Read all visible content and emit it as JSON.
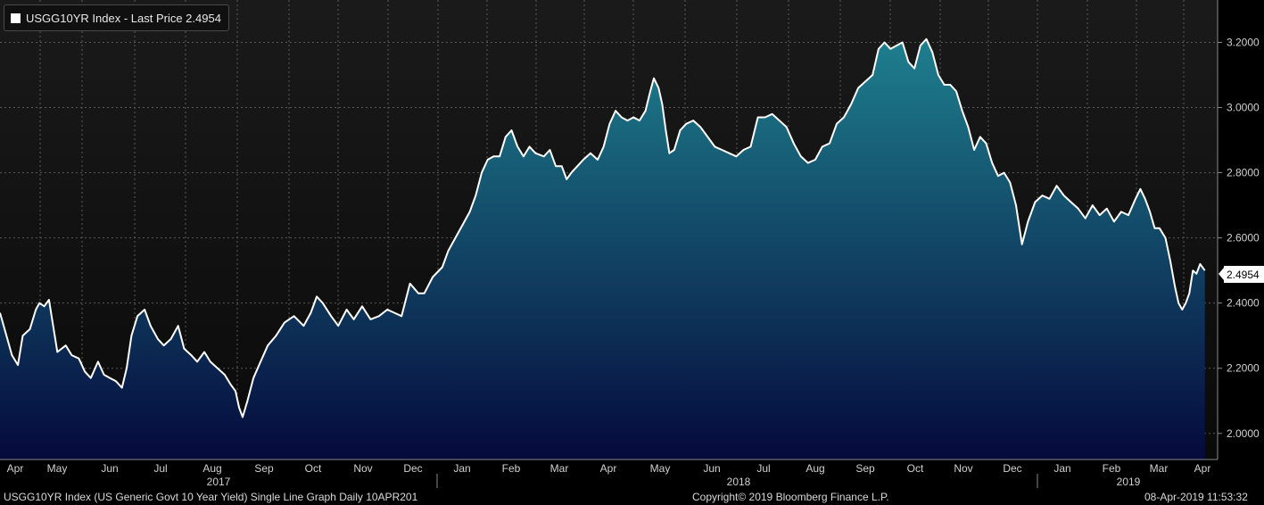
{
  "legend": {
    "label": "USGG10YR Index - Last Price 2.4954",
    "color": "#ffffff"
  },
  "footer": {
    "left": "USGG10YR Index (US Generic Govt 10 Year Yield) Single Line Graph  Daily 10APR201",
    "center": "Copyright© 2019 Bloomberg Finance L.P.",
    "right": "08-Apr-2019 11:53:32"
  },
  "colors": {
    "background_top": "#1a1a1a",
    "background_bottom": "#0a0a0a",
    "fill_top": "#1e7f8e",
    "fill_bottom": "#050a3c",
    "line": "#ffffff",
    "grid": "#5a5a5a"
  },
  "chart_data": {
    "type": "area",
    "title": "USGG10YR Index - Last Price 2.4954",
    "xlabel": "",
    "ylabel": "",
    "last_price_label": "2.4954",
    "ylim": [
      1.92,
      3.33
    ],
    "y_ticks": [
      "2.0000",
      "2.2000",
      "2.4000",
      "2.6000",
      "2.8000",
      "3.0000",
      "3.2000"
    ],
    "y_tick_values": [
      2.0,
      2.2,
      2.4,
      2.6,
      2.8,
      3.0,
      3.2
    ],
    "grid": true,
    "month_labels": [
      "Apr",
      "May",
      "Jun",
      "Jul",
      "Aug",
      "Sep",
      "Oct",
      "Nov",
      "Dec",
      "Jan",
      "Feb",
      "Mar",
      "Apr",
      "May",
      "Jun",
      "Jul",
      "Aug",
      "Sep",
      "Oct",
      "Nov",
      "Dec",
      "Jan",
      "Feb",
      "Mar",
      "Apr"
    ],
    "year_labels": [
      "2017",
      "2018",
      "2019"
    ],
    "series": [
      {
        "values": [
          [
            0.0,
            2.37
          ],
          [
            0.01,
            2.24
          ],
          [
            0.015,
            2.21
          ],
          [
            0.019,
            2.3
          ],
          [
            0.025,
            2.32
          ],
          [
            0.03,
            2.38
          ],
          [
            0.033,
            2.4
          ],
          [
            0.037,
            2.39
          ],
          [
            0.041,
            2.41
          ],
          [
            0.044,
            2.34
          ],
          [
            0.048,
            2.25
          ],
          [
            0.055,
            2.27
          ],
          [
            0.06,
            2.24
          ],
          [
            0.066,
            2.23
          ],
          [
            0.071,
            2.19
          ],
          [
            0.076,
            2.17
          ],
          [
            0.082,
            2.22
          ],
          [
            0.087,
            2.18
          ],
          [
            0.092,
            2.17
          ],
          [
            0.097,
            2.16
          ],
          [
            0.102,
            2.14
          ],
          [
            0.106,
            2.2
          ],
          [
            0.11,
            2.3
          ],
          [
            0.115,
            2.36
          ],
          [
            0.121,
            2.38
          ],
          [
            0.126,
            2.33
          ],
          [
            0.132,
            2.29
          ],
          [
            0.137,
            2.27
          ],
          [
            0.143,
            2.29
          ],
          [
            0.149,
            2.33
          ],
          [
            0.154,
            2.26
          ],
          [
            0.16,
            2.24
          ],
          [
            0.165,
            2.22
          ],
          [
            0.171,
            2.25
          ],
          [
            0.176,
            2.22
          ],
          [
            0.182,
            2.2
          ],
          [
            0.188,
            2.18
          ],
          [
            0.193,
            2.15
          ],
          [
            0.197,
            2.13
          ],
          [
            0.2,
            2.08
          ],
          [
            0.203,
            2.05
          ],
          [
            0.207,
            2.1
          ],
          [
            0.212,
            2.17
          ],
          [
            0.218,
            2.22
          ],
          [
            0.224,
            2.27
          ],
          [
            0.231,
            2.3
          ],
          [
            0.238,
            2.34
          ],
          [
            0.246,
            2.36
          ],
          [
            0.254,
            2.33
          ],
          [
            0.26,
            2.37
          ],
          [
            0.265,
            2.42
          ],
          [
            0.27,
            2.4
          ],
          [
            0.277,
            2.36
          ],
          [
            0.283,
            2.33
          ],
          [
            0.29,
            2.38
          ],
          [
            0.296,
            2.35
          ],
          [
            0.303,
            2.39
          ],
          [
            0.31,
            2.35
          ],
          [
            0.317,
            2.36
          ],
          [
            0.324,
            2.38
          ],
          [
            0.33,
            2.37
          ],
          [
            0.336,
            2.36
          ],
          [
            0.343,
            2.46
          ],
          [
            0.35,
            2.43
          ],
          [
            0.355,
            2.43
          ],
          [
            0.362,
            2.48
          ],
          [
            0.37,
            2.51
          ],
          [
            0.375,
            2.56
          ],
          [
            0.381,
            2.6
          ],
          [
            0.387,
            2.64
          ],
          [
            0.393,
            2.68
          ],
          [
            0.398,
            2.73
          ],
          [
            0.403,
            2.8
          ],
          [
            0.408,
            2.84
          ],
          [
            0.413,
            2.85
          ],
          [
            0.418,
            2.85
          ],
          [
            0.423,
            2.91
          ],
          [
            0.428,
            2.93
          ],
          [
            0.433,
            2.88
          ],
          [
            0.438,
            2.85
          ],
          [
            0.443,
            2.88
          ],
          [
            0.448,
            2.86
          ],
          [
            0.455,
            2.85
          ],
          [
            0.46,
            2.87
          ],
          [
            0.465,
            2.82
          ],
          [
            0.47,
            2.82
          ],
          [
            0.474,
            2.78
          ],
          [
            0.478,
            2.8
          ],
          [
            0.483,
            2.82
          ],
          [
            0.488,
            2.84
          ],
          [
            0.494,
            2.86
          ],
          [
            0.5,
            2.84
          ],
          [
            0.505,
            2.88
          ],
          [
            0.51,
            2.95
          ],
          [
            0.515,
            2.99
          ],
          [
            0.52,
            2.97
          ],
          [
            0.525,
            2.96
          ],
          [
            0.53,
            2.97
          ],
          [
            0.535,
            2.96
          ],
          [
            0.54,
            2.99
          ],
          [
            0.544,
            3.05
          ],
          [
            0.547,
            3.09
          ],
          [
            0.551,
            3.06
          ],
          [
            0.554,
            3.01
          ],
          [
            0.557,
            2.93
          ],
          [
            0.56,
            2.86
          ],
          [
            0.564,
            2.87
          ],
          [
            0.569,
            2.93
          ],
          [
            0.574,
            2.95
          ],
          [
            0.58,
            2.96
          ],
          [
            0.586,
            2.94
          ],
          [
            0.592,
            2.91
          ],
          [
            0.598,
            2.88
          ],
          [
            0.604,
            2.87
          ],
          [
            0.61,
            2.86
          ],
          [
            0.616,
            2.85
          ],
          [
            0.622,
            2.87
          ],
          [
            0.628,
            2.88
          ],
          [
            0.634,
            2.97
          ],
          [
            0.64,
            2.97
          ],
          [
            0.646,
            2.98
          ],
          [
            0.652,
            2.96
          ],
          [
            0.658,
            2.94
          ],
          [
            0.664,
            2.89
          ],
          [
            0.67,
            2.85
          ],
          [
            0.676,
            2.83
          ],
          [
            0.682,
            2.84
          ],
          [
            0.688,
            2.88
          ],
          [
            0.694,
            2.89
          ],
          [
            0.7,
            2.95
          ],
          [
            0.706,
            2.97
          ],
          [
            0.712,
            3.01
          ],
          [
            0.718,
            3.06
          ],
          [
            0.724,
            3.08
          ],
          [
            0.73,
            3.1
          ],
          [
            0.735,
            3.18
          ],
          [
            0.74,
            3.2
          ],
          [
            0.745,
            3.18
          ],
          [
            0.75,
            3.19
          ],
          [
            0.755,
            3.2
          ],
          [
            0.76,
            3.14
          ],
          [
            0.765,
            3.12
          ],
          [
            0.77,
            3.19
          ],
          [
            0.775,
            3.21
          ],
          [
            0.78,
            3.17
          ],
          [
            0.785,
            3.1
          ],
          [
            0.79,
            3.07
          ],
          [
            0.795,
            3.07
          ],
          [
            0.8,
            3.05
          ],
          [
            0.805,
            2.99
          ],
          [
            0.81,
            2.94
          ],
          [
            0.815,
            2.87
          ],
          [
            0.82,
            2.91
          ],
          [
            0.825,
            2.89
          ],
          [
            0.83,
            2.83
          ],
          [
            0.835,
            2.79
          ],
          [
            0.84,
            2.8
          ],
          [
            0.845,
            2.77
          ],
          [
            0.85,
            2.7
          ],
          [
            0.855,
            2.58
          ],
          [
            0.86,
            2.65
          ],
          [
            0.866,
            2.71
          ],
          [
            0.872,
            2.73
          ],
          [
            0.878,
            2.72
          ],
          [
            0.884,
            2.76
          ],
          [
            0.89,
            2.73
          ],
          [
            0.896,
            2.71
          ],
          [
            0.902,
            2.69
          ],
          [
            0.908,
            2.66
          ],
          [
            0.914,
            2.7
          ],
          [
            0.92,
            2.67
          ],
          [
            0.926,
            2.69
          ],
          [
            0.932,
            2.65
          ],
          [
            0.938,
            2.68
          ],
          [
            0.944,
            2.67
          ],
          [
            0.95,
            2.72
          ],
          [
            0.954,
            2.75
          ],
          [
            0.958,
            2.72
          ],
          [
            0.962,
            2.68
          ],
          [
            0.966,
            2.63
          ],
          [
            0.97,
            2.63
          ],
          [
            0.975,
            2.6
          ],
          [
            0.979,
            2.53
          ],
          [
            0.983,
            2.45
          ],
          [
            0.986,
            2.4
          ],
          [
            0.989,
            2.38
          ],
          [
            0.992,
            2.4
          ],
          [
            0.995,
            2.43
          ],
          [
            0.998,
            2.5
          ],
          [
            1.001,
            2.49
          ],
          [
            1.004,
            2.52
          ],
          [
            1.008,
            2.5
          ]
        ]
      }
    ]
  }
}
